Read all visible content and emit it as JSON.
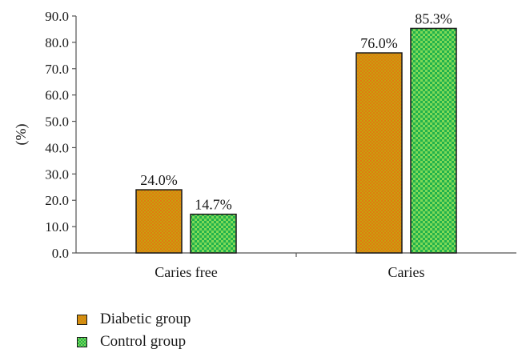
{
  "chart_data": {
    "type": "bar",
    "categories": [
      "Caries free",
      "Caries"
    ],
    "series": [
      {
        "name": "Diabetic group",
        "values": [
          24.0,
          76.0
        ],
        "labels": [
          "24.0%",
          "76.0%"
        ],
        "color": "#E07B10",
        "pattern_color": "#C8A010"
      },
      {
        "name": "Control group",
        "values": [
          14.7,
          85.3
        ],
        "labels": [
          "14.7%",
          "85.3%"
        ],
        "color": "#22B24C",
        "pattern_color": "#7ED957"
      }
    ],
    "ylabel": "(%)",
    "xlabel": "",
    "ylim": [
      0,
      90
    ],
    "yticks": [
      "0.0",
      "10.0",
      "20.0",
      "30.0",
      "40.0",
      "50.0",
      "60.0",
      "70.0",
      "80.0",
      "90.0"
    ],
    "legend_position": "bottom-left",
    "grid": false
  }
}
